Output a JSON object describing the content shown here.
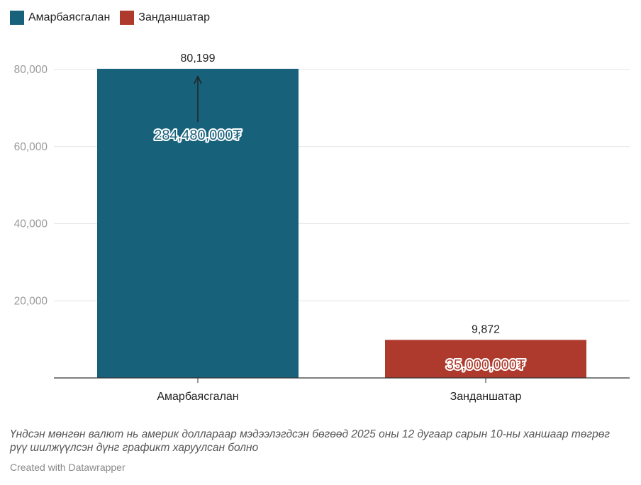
{
  "legend": [
    {
      "label": "Амарбаясгалан",
      "color": "#17617b"
    },
    {
      "label": "Занданшатар",
      "color": "#ad3a2c"
    }
  ],
  "chart_data": {
    "type": "bar",
    "categories": [
      "Амарбаясгалан",
      "Занданшатар"
    ],
    "values": [
      80199,
      9872
    ],
    "value_labels": [
      "80,199",
      "9,872"
    ],
    "annotations": [
      "284,480,000₮",
      "35,000,000₮"
    ],
    "colors": [
      "#17617b",
      "#ad3a2c"
    ],
    "yticks": [
      20000,
      40000,
      60000,
      80000
    ],
    "ytick_labels": [
      "20,000",
      "40,000",
      "60,000",
      "80,000"
    ],
    "ylim": [
      0,
      80199
    ],
    "title": "",
    "xlabel": "",
    "ylabel": ""
  },
  "footnote": "Үндсэн мөнгөн валют нь америк доллараар мэдээлэгдсэн бөгөөд 2025 оны 12 дугаар сарын 10-ны ханшаар төгрөг рүү шилжүүлсэн дүнг графикт харуулсан болно",
  "credit": "Created with Datawrapper"
}
